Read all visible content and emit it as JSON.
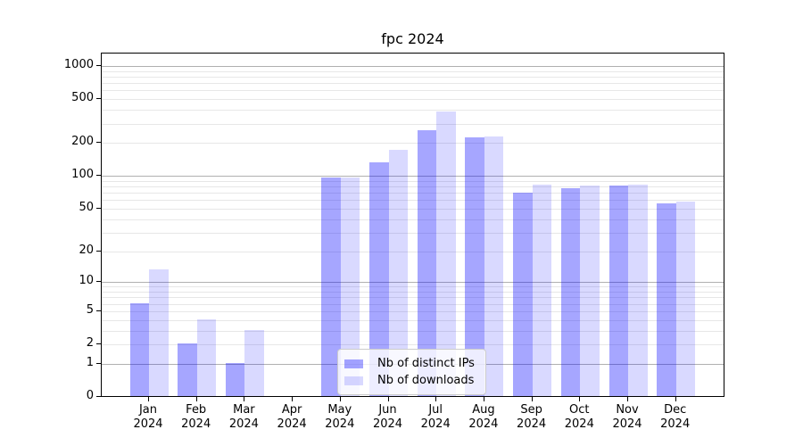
{
  "title": "fpc 2024",
  "chart_data": {
    "type": "bar",
    "title": "fpc 2024",
    "categories": [
      "Jan 2024",
      "Feb 2024",
      "Mar 2024",
      "Apr 2024",
      "May 2024",
      "Jun 2024",
      "Jul 2024",
      "Aug 2024",
      "Sep 2024",
      "Oct 2024",
      "Nov 2024",
      "Dec 2024"
    ],
    "series": [
      {
        "name": "Nb of distinct IPs",
        "color": "rgba(0,0,255,0.35)",
        "values": [
          6,
          2,
          1,
          0,
          95,
          130,
          255,
          220,
          69,
          75,
          80,
          55
        ]
      },
      {
        "name": "Nb of downloads",
        "color": "rgba(0,0,255,0.15)",
        "values": [
          13,
          4,
          3,
          0,
          95,
          170,
          380,
          226,
          82,
          80,
          82,
          57
        ]
      }
    ],
    "y_axis": {
      "scale": "log10(1+x)",
      "tick_labels": [
        0,
        1,
        2,
        5,
        10,
        20,
        50,
        100,
        200,
        500,
        1000
      ],
      "ylim": [
        0,
        1310
      ],
      "major_gridlines": [
        1,
        10,
        100,
        1000
      ],
      "minor_gridlines": [
        2,
        3,
        4,
        5,
        6,
        7,
        8,
        9,
        20,
        30,
        40,
        50,
        60,
        70,
        80,
        90,
        200,
        300,
        400,
        500,
        600,
        700,
        800,
        900
      ]
    },
    "legend": {
      "position": "lower-center"
    },
    "colors": {
      "major_grid": "#b0b0b0",
      "minor_grid": "#e7e7e7",
      "spine": "#000000",
      "text": "#000000",
      "legend_border": "#cccccc",
      "legend_bg": "rgba(255,255,255,0.8)"
    }
  }
}
